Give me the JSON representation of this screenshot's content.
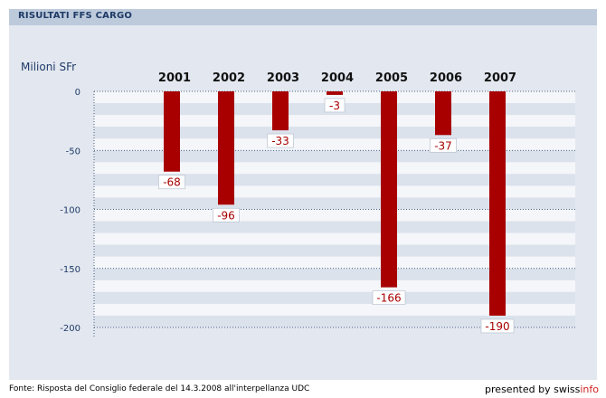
{
  "header": {
    "title": "RISULTATI FFS CARGO"
  },
  "footer": {
    "source": "Fonte: Risposta del Consiglio federale del 14.3.2008 all'interpellanza UDC",
    "presented_by": "presented by",
    "brand_part1": "swiss",
    "brand_part2": "info"
  },
  "colors": {
    "bar": "#a80000",
    "axis_text": "#1f3a66",
    "label_text": "#a80000",
    "brand_accent": "#d21e1e"
  },
  "chart_data": {
    "type": "bar",
    "title": "",
    "xlabel": "",
    "ylabel": "Milioni SFr",
    "categories": [
      "2001",
      "2002",
      "2003",
      "2004",
      "2005",
      "2006",
      "2007"
    ],
    "values": [
      -68,
      -96,
      -33,
      -3,
      -166,
      -37,
      -190
    ],
    "data_labels": [
      "-68",
      "-96",
      "-33",
      "-3",
      "-166",
      "-37",
      "-190"
    ],
    "yticks": [
      0,
      -50,
      -100,
      -150,
      -200
    ],
    "ytick_labels": [
      "0",
      "-50",
      "-100",
      "-150",
      "-200"
    ],
    "ylim": [
      -200,
      0
    ],
    "category_axis_position": "top",
    "grid": true
  }
}
